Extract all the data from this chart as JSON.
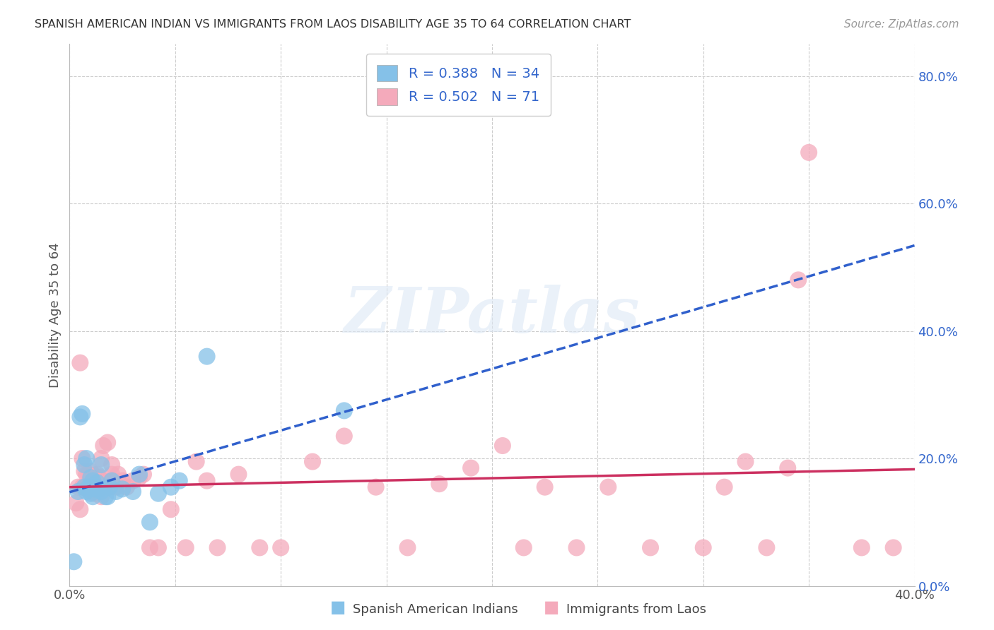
{
  "title": "SPANISH AMERICAN INDIAN VS IMMIGRANTS FROM LAOS DISABILITY AGE 35 TO 64 CORRELATION CHART",
  "source": "Source: ZipAtlas.com",
  "ylabel": "Disability Age 35 to 64",
  "xmin": 0.0,
  "xmax": 0.4,
  "ymin": 0.0,
  "ymax": 0.85,
  "ytick_vals": [
    0.0,
    0.2,
    0.4,
    0.6,
    0.8
  ],
  "xtick_vals": [
    0.0,
    0.05,
    0.1,
    0.15,
    0.2,
    0.25,
    0.3,
    0.35,
    0.4
  ],
  "blue_R": 0.388,
  "blue_N": 34,
  "pink_R": 0.502,
  "pink_N": 71,
  "blue_color": "#85C1E8",
  "pink_color": "#F4AABB",
  "blue_line_color": "#3060CC",
  "pink_line_color": "#CC3060",
  "legend_text_color": "#3366CC",
  "watermark": "ZIPatlas",
  "blue_scatter_x": [
    0.002,
    0.004,
    0.005,
    0.006,
    0.007,
    0.007,
    0.008,
    0.008,
    0.009,
    0.01,
    0.01,
    0.01,
    0.011,
    0.011,
    0.012,
    0.013,
    0.013,
    0.014,
    0.015,
    0.015,
    0.017,
    0.018,
    0.019,
    0.02,
    0.022,
    0.025,
    0.03,
    0.033,
    0.038,
    0.042,
    0.048,
    0.052,
    0.065,
    0.13
  ],
  "blue_scatter_y": [
    0.038,
    0.148,
    0.265,
    0.27,
    0.155,
    0.19,
    0.148,
    0.2,
    0.155,
    0.145,
    0.155,
    0.17,
    0.14,
    0.165,
    0.152,
    0.155,
    0.162,
    0.152,
    0.148,
    0.19,
    0.14,
    0.14,
    0.155,
    0.165,
    0.148,
    0.152,
    0.148,
    0.175,
    0.1,
    0.145,
    0.155,
    0.165,
    0.36,
    0.275
  ],
  "pink_scatter_x": [
    0.003,
    0.004,
    0.005,
    0.005,
    0.006,
    0.006,
    0.007,
    0.008,
    0.008,
    0.009,
    0.009,
    0.01,
    0.01,
    0.01,
    0.011,
    0.011,
    0.012,
    0.012,
    0.013,
    0.013,
    0.014,
    0.014,
    0.015,
    0.015,
    0.016,
    0.016,
    0.017,
    0.018,
    0.018,
    0.019,
    0.02,
    0.02,
    0.021,
    0.022,
    0.023,
    0.025,
    0.027,
    0.03,
    0.033,
    0.035,
    0.038,
    0.042,
    0.048,
    0.055,
    0.06,
    0.065,
    0.07,
    0.08,
    0.09,
    0.1,
    0.115,
    0.13,
    0.145,
    0.16,
    0.175,
    0.19,
    0.205,
    0.215,
    0.225,
    0.24,
    0.255,
    0.275,
    0.3,
    0.31,
    0.32,
    0.33,
    0.34,
    0.345,
    0.35,
    0.375,
    0.39
  ],
  "pink_scatter_y": [
    0.13,
    0.155,
    0.12,
    0.35,
    0.155,
    0.2,
    0.18,
    0.155,
    0.175,
    0.15,
    0.175,
    0.155,
    0.165,
    0.18,
    0.148,
    0.155,
    0.145,
    0.165,
    0.155,
    0.175,
    0.155,
    0.17,
    0.14,
    0.2,
    0.155,
    0.22,
    0.165,
    0.155,
    0.225,
    0.155,
    0.175,
    0.19,
    0.165,
    0.155,
    0.175,
    0.165,
    0.155,
    0.165,
    0.17,
    0.175,
    0.06,
    0.06,
    0.12,
    0.06,
    0.195,
    0.165,
    0.06,
    0.175,
    0.06,
    0.06,
    0.195,
    0.235,
    0.155,
    0.06,
    0.16,
    0.185,
    0.22,
    0.06,
    0.155,
    0.06,
    0.155,
    0.06,
    0.06,
    0.155,
    0.195,
    0.06,
    0.185,
    0.48,
    0.68,
    0.06,
    0.06
  ]
}
